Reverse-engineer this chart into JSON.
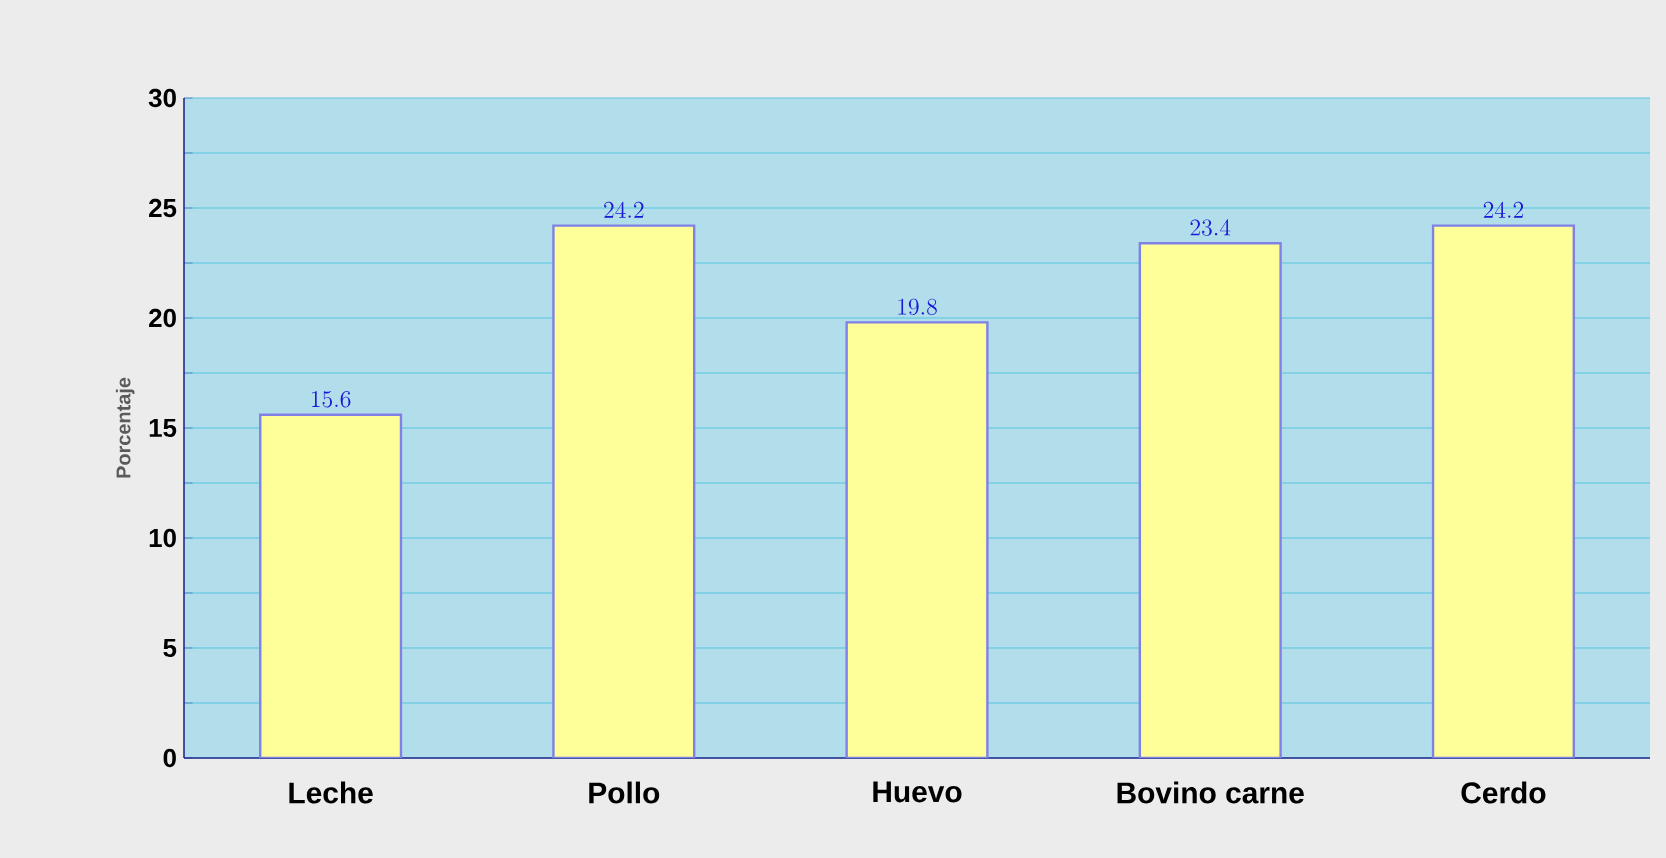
{
  "chart_data": {
    "type": "bar",
    "ylabel": "Porcentaje",
    "categories": [
      "Leche",
      "Pollo",
      "Huevo",
      "Bovino carne",
      "Cerdo"
    ],
    "values": [
      15.6,
      24.2,
      19.8,
      23.4,
      24.2
    ],
    "color": "#ffff99",
    "ylim": [
      0,
      30
    ],
    "yticks": [
      0,
      {
        "value": 2.5,
        "label": null
      },
      5,
      {
        "value": 7.5,
        "label": null
      },
      10,
      {
        "value": 12.5,
        "label": null
      },
      15,
      {
        "value": 17.5,
        "label": null
      },
      20,
      {
        "value": 22.5,
        "label": null
      },
      25,
      {
        "value": 27.5,
        "label": null
      },
      30
    ],
    "grid": "y",
    "data_labels": true
  }
}
